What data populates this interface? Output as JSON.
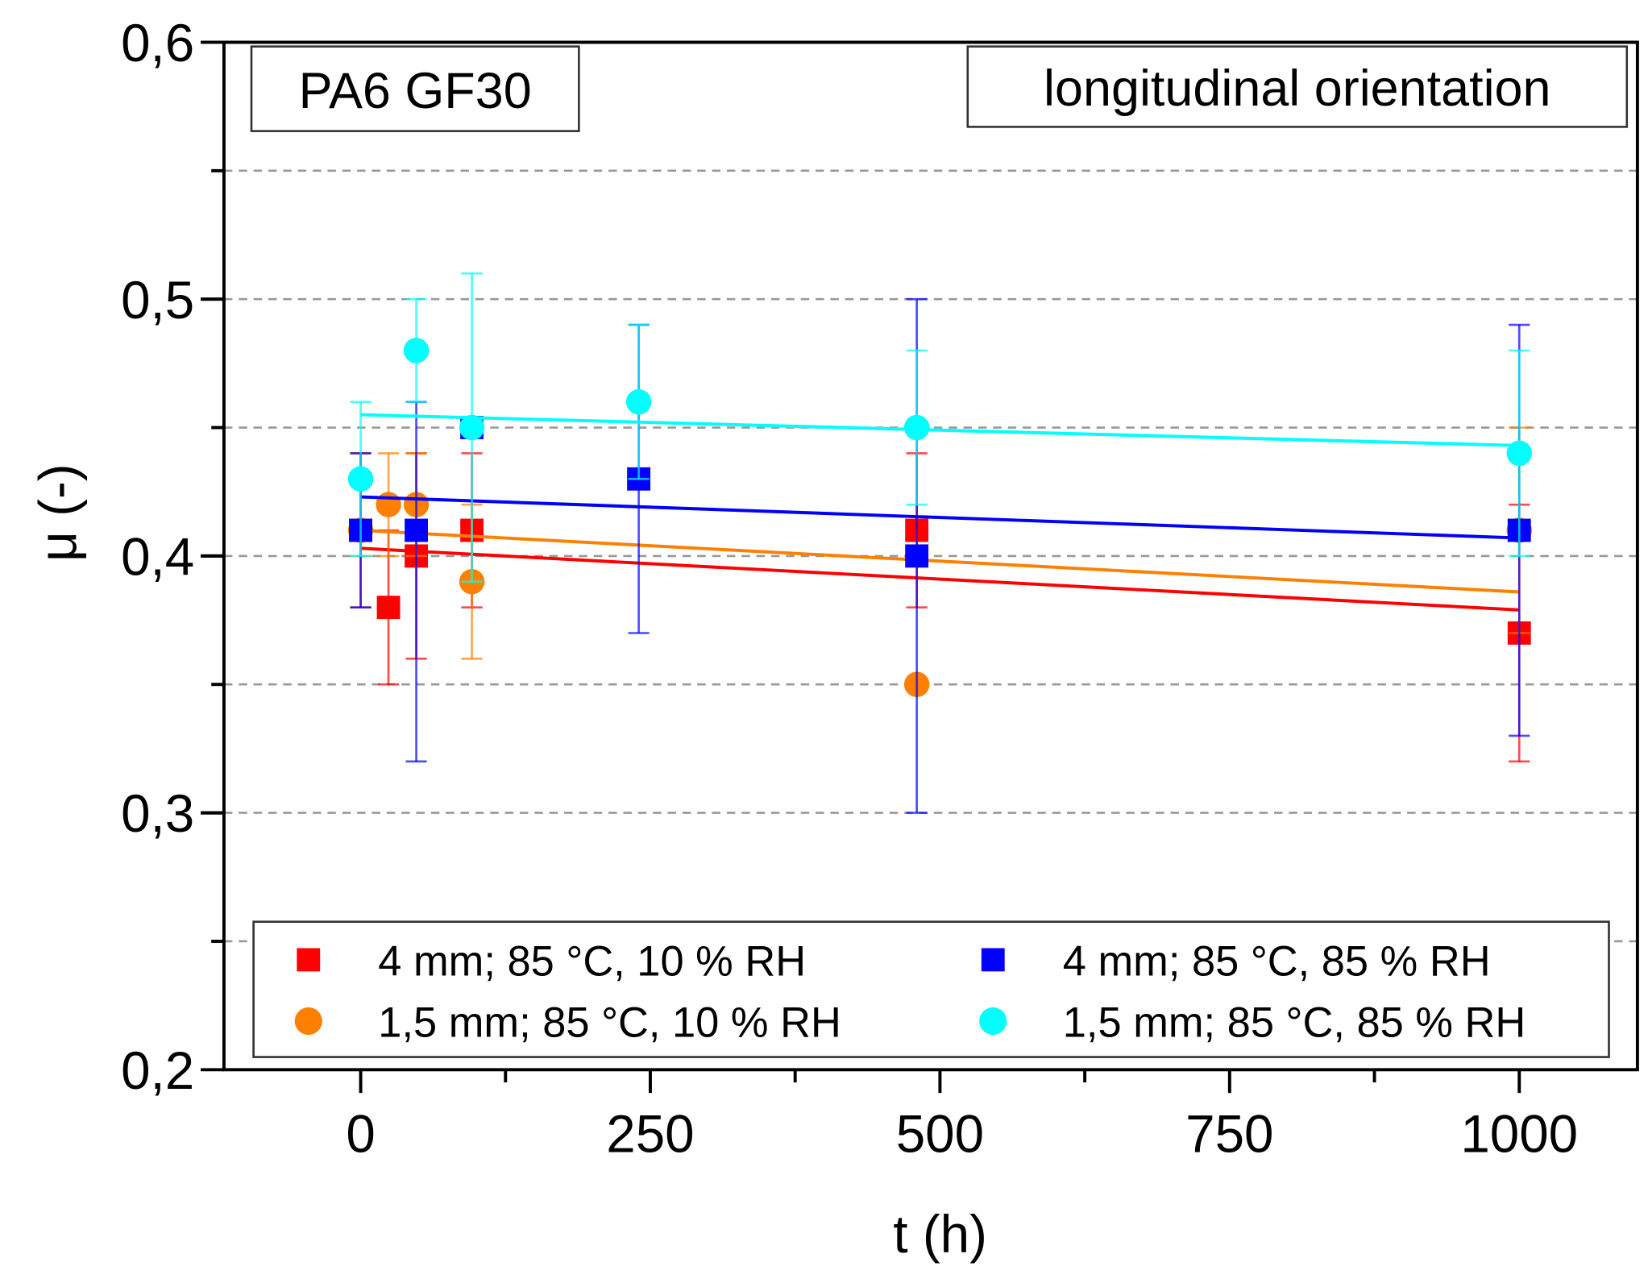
{
  "chart_data": {
    "type": "scatter",
    "title": "",
    "xlabel": "t (h)",
    "ylabel": "μ (-)",
    "xlim": [
      -118,
      1102
    ],
    "ylim": [
      0.2,
      0.6
    ],
    "xticks": [
      0,
      250,
      500,
      750,
      1000
    ],
    "xtick_labels": [
      "0",
      "250",
      "500",
      "750",
      "1000"
    ],
    "yticks": [
      0.2,
      0.3,
      0.4,
      0.5,
      0.6
    ],
    "ytick_labels": [
      "0,2",
      "0,3",
      "0,4",
      "0,5",
      "0,6"
    ],
    "grid": true,
    "legend_position": "bottom",
    "annotations": {
      "material": "PA6 GF30",
      "orientation": "longitudinal orientation"
    },
    "series": [
      {
        "name": "4 mm; 85 °C, 10 % RH",
        "marker": "square",
        "color": "#ff0000",
        "x": [
          0,
          24,
          48,
          96,
          480,
          1000
        ],
        "y": [
          0.41,
          0.38,
          0.4,
          0.41,
          0.41,
          0.37
        ],
        "err_low": [
          0.38,
          0.35,
          0.36,
          0.38,
          0.38,
          0.32
        ],
        "err_high": [
          0.44,
          0.41,
          0.44,
          0.44,
          0.44,
          0.42
        ],
        "fit": [
          [
            0,
            0.403
          ],
          [
            1000,
            0.379
          ]
        ]
      },
      {
        "name": "1,5 mm; 85 °C, 10 % RH",
        "marker": "circle",
        "color": "#ff8000",
        "x": [
          0,
          24,
          48,
          96,
          480,
          1000
        ],
        "y": [
          0.41,
          0.42,
          0.42,
          0.39,
          0.35,
          0.41
        ],
        "err_low": [
          0.4,
          0.4,
          0.4,
          0.36,
          0.35,
          0.37
        ],
        "err_high": [
          0.44,
          0.44,
          0.44,
          0.42,
          0.35,
          0.45
        ],
        "fit": [
          [
            0,
            0.41
          ],
          [
            1000,
            0.386
          ]
        ]
      },
      {
        "name": "4 mm; 85 °C, 85 % RH",
        "marker": "square",
        "color": "#0000ff",
        "x": [
          0,
          48,
          96,
          240,
          480,
          1000
        ],
        "y": [
          0.41,
          0.41,
          0.45,
          0.43,
          0.4,
          0.41
        ],
        "err_low": [
          0.38,
          0.32,
          0.45,
          0.37,
          0.3,
          0.33
        ],
        "err_high": [
          0.44,
          0.46,
          0.45,
          0.49,
          0.5,
          0.49
        ],
        "fit": [
          [
            0,
            0.423
          ],
          [
            1000,
            0.407
          ]
        ]
      },
      {
        "name": "1,5 mm; 85 °C, 85 % RH",
        "marker": "circle",
        "color": "#00ffff",
        "x": [
          0,
          48,
          96,
          240,
          480,
          1000
        ],
        "y": [
          0.43,
          0.48,
          0.45,
          0.46,
          0.45,
          0.44
        ],
        "err_low": [
          0.4,
          0.46,
          0.39,
          0.43,
          0.42,
          0.4
        ],
        "err_high": [
          0.46,
          0.5,
          0.51,
          0.49,
          0.48,
          0.48
        ],
        "fit": [
          [
            0,
            0.455
          ],
          [
            1000,
            0.443
          ]
        ]
      }
    ]
  }
}
